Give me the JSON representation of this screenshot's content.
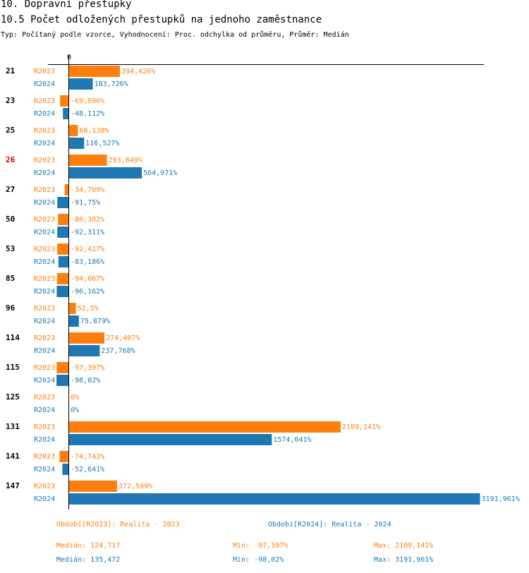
{
  "header": {
    "title": "10. Dopravní přestupky",
    "subtitle": "10.5 Počet odložených přestupků na jednoho zaměstnance",
    "type_line": "Typ: Počítaný podle vzorce, Vyhodnocení: Proc. odchylka od průměru, Průměr: Medián"
  },
  "colors": {
    "r2023": "#ff7f0e",
    "r2024": "#1f77b4",
    "highlight": "#cc0000"
  },
  "chart_data": {
    "type": "bar",
    "orientation": "horizontal",
    "title": "10.5 Počet odložených přestupků na jednoho zaměstnance",
    "axis_zero_label": "0",
    "unit": "%",
    "decimal_separator": ",",
    "series_names": [
      "R2023",
      "R2024"
    ],
    "categories": [
      {
        "label": "21",
        "highlight": false,
        "values": [
          394.426,
          183.726
        ],
        "labels": [
          "394,426%",
          "183,726%"
        ]
      },
      {
        "label": "23",
        "highlight": false,
        "values": [
          -69.896,
          -48.112
        ],
        "labels": [
          "-69,896%",
          "-48,112%"
        ]
      },
      {
        "label": "25",
        "highlight": false,
        "values": [
          68.138,
          116.527
        ],
        "labels": [
          "68,138%",
          "116,527%"
        ]
      },
      {
        "label": "26",
        "highlight": true,
        "values": [
          293.849,
          564.971
        ],
        "labels": [
          "293,849%",
          "564,971%"
        ]
      },
      {
        "label": "27",
        "highlight": false,
        "values": [
          -34.709,
          -91.75
        ],
        "labels": [
          "-34,709%",
          "-91,75%"
        ]
      },
      {
        "label": "50",
        "highlight": false,
        "values": [
          -86.302,
          -92.311
        ],
        "labels": [
          "-86,302%",
          "-92,311%"
        ]
      },
      {
        "label": "53",
        "highlight": false,
        "values": [
          -92.427,
          -83.186
        ],
        "labels": [
          "-92,427%",
          "-83,186%"
        ]
      },
      {
        "label": "85",
        "highlight": false,
        "values": [
          -94.067,
          -96.162
        ],
        "labels": [
          "-94,067%",
          "-96,162%"
        ]
      },
      {
        "label": "96",
        "highlight": false,
        "values": [
          52.5,
          75.879
        ],
        "labels": [
          "52,5%",
          "75,879%"
        ]
      },
      {
        "label": "114",
        "highlight": false,
        "values": [
          274.407,
          237.768
        ],
        "labels": [
          "274,407%",
          "237,768%"
        ]
      },
      {
        "label": "115",
        "highlight": false,
        "values": [
          -97.397,
          -98.02
        ],
        "labels": [
          "-97,397%",
          "-98,02%"
        ]
      },
      {
        "label": "125",
        "highlight": false,
        "values": [
          0,
          0
        ],
        "labels": [
          "0%",
          "0%"
        ]
      },
      {
        "label": "131",
        "highlight": false,
        "values": [
          2109.141,
          1574.641
        ],
        "labels": [
          "2109,141%",
          "1574,641%"
        ]
      },
      {
        "label": "141",
        "highlight": false,
        "values": [
          -74.743,
          -52.641
        ],
        "labels": [
          "-74,743%",
          "-52,641%"
        ]
      },
      {
        "label": "147",
        "highlight": false,
        "values": [
          372.599,
          3191.961
        ],
        "labels": [
          "372,599%",
          "3191,961%"
        ]
      }
    ]
  },
  "legend": {
    "r2023": "Období[R2023]: Realita - 2023",
    "r2024": "Období[R2024]: Realita - 2024"
  },
  "stats": {
    "r2023": {
      "median": "Medián: 124,717",
      "min": "Min: -97,397%",
      "max": "Max: 2109,141%"
    },
    "r2024": {
      "median": "Medián: 135,472",
      "min": "Min: -98,02%",
      "max": "Max: 3191,961%"
    }
  }
}
